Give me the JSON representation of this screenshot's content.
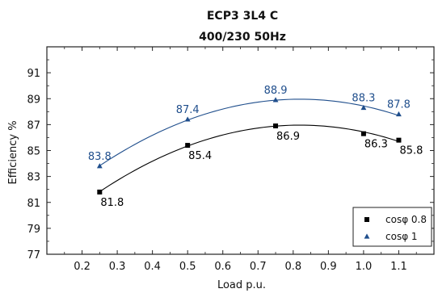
{
  "chart_data": {
    "type": "line",
    "title": "ECP3 3L4 C",
    "subtitle": "400/230 50Hz",
    "xlabel": "Load p.u.",
    "ylabel": "Efficiency %",
    "xlim": [
      0.1,
      1.2
    ],
    "ylim": [
      77,
      93
    ],
    "x_ticks": [
      "0.2",
      "0.3",
      "0.4",
      "0.5",
      "0.6",
      "0.7",
      "0.8",
      "0.9",
      "1.0",
      "1.1"
    ],
    "y_ticks": [
      "77",
      "79",
      "81",
      "83",
      "85",
      "87",
      "89",
      "91"
    ],
    "grid": false,
    "legend_position": "bottom-right",
    "series": [
      {
        "name": "cosφ 0.8",
        "marker": "square",
        "color": "#000000",
        "x": [
          0.25,
          0.5,
          0.75,
          1.0,
          1.1
        ],
        "values": [
          81.8,
          85.4,
          86.9,
          86.3,
          85.8
        ],
        "labels": [
          "81.8",
          "85.4",
          "86.9",
          "86.3",
          "85.8"
        ]
      },
      {
        "name": "cosφ 1",
        "marker": "triangle",
        "color": "#1f4e8c",
        "x": [
          0.25,
          0.5,
          0.75,
          1.0,
          1.1
        ],
        "values": [
          83.8,
          87.4,
          88.9,
          88.3,
          87.8
        ],
        "labels": [
          "83.8",
          "87.4",
          "88.9",
          "88.3",
          "87.8"
        ]
      }
    ]
  }
}
